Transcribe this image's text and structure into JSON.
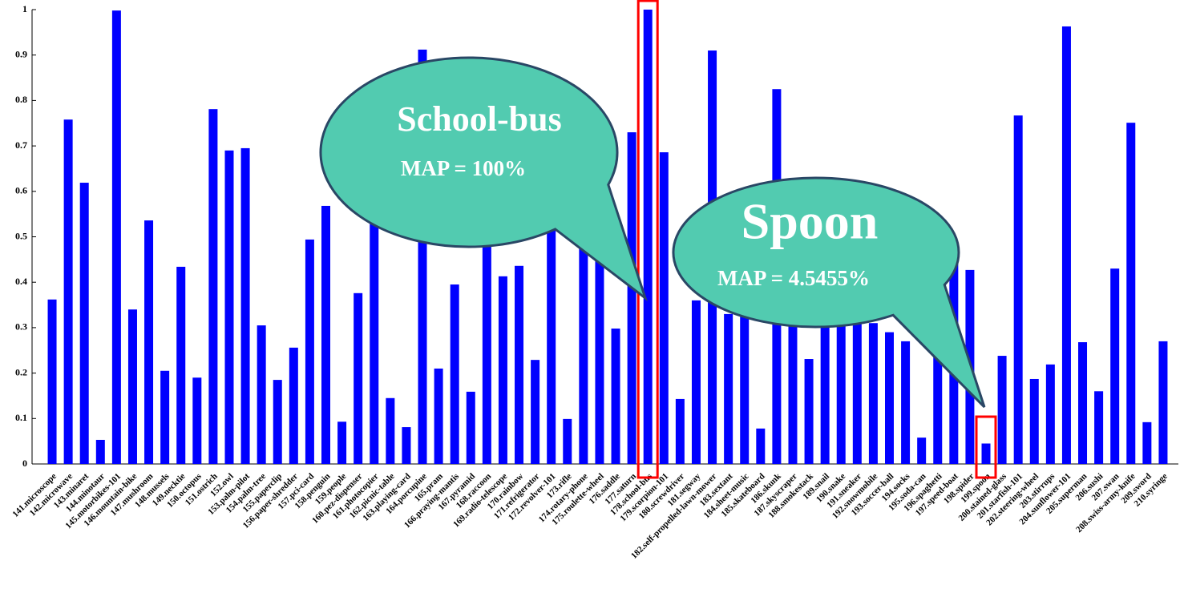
{
  "chart_data": {
    "type": "bar",
    "color": "#0000ff",
    "categories": [
      "141.microscope",
      "142.microwave",
      "143.minaret",
      "144.minotaur",
      "145.motorbikes-101",
      "146.mountain-bike",
      "147.mushroom",
      "148.mussels",
      "149.necktie",
      "150.octopus",
      "151.ostrich",
      "152.owl",
      "153.palm-pilot",
      "154.palm-tree",
      "155.paperclip",
      "156.paper-shredder",
      "157.pci-card",
      "158.penguin",
      "159.people",
      "160.pez-dispenser",
      "161.photocopier",
      "162.picnic-table",
      "163.playing-card",
      "164.porcupine",
      "165.pram",
      "166.praying-mantis",
      "167.pyramid",
      "168.raccoon",
      "169.radio-telescope",
      "170.rainbow",
      "171.refrigerator",
      "172.revolver-101",
      "173.rifle",
      "174.rotary-phone",
      "175.roulette-wheel",
      "176.saddle",
      "177.saturn",
      "178.school-bus",
      "179.scorpion-101",
      "180.screwdriver",
      "181.segway",
      "182.self-propelled-lawn-mower",
      "183.sextant",
      "184.sheet-music",
      "185.skateboard",
      "186.skunk",
      "187.skyscraper",
      "188.smokestack",
      "189.snail",
      "190.snake",
      "191.sneaker",
      "192.snowmobile",
      "193.soccer-ball",
      "194.socks",
      "195.soda-can",
      "196.spaghetti",
      "197.speed-boat",
      "198.spider",
      "199.spoon",
      "200.stained-glass",
      "201.starfish-101",
      "202.steering-wheel",
      "203.stirrups",
      "204.sunflower-101",
      "205.superman",
      "206.sushi",
      "207.swan",
      "208.swiss-army-knife",
      "209.sword",
      "210.syringe"
    ],
    "values": [
      0.362,
      0.758,
      0.619,
      0.053,
      0.998,
      0.34,
      0.536,
      0.205,
      0.434,
      0.19,
      0.781,
      0.69,
      0.695,
      0.305,
      0.185,
      0.256,
      0.494,
      0.568,
      0.093,
      0.376,
      0.58,
      0.145,
      0.081,
      0.912,
      0.21,
      0.395,
      0.159,
      0.58,
      0.413,
      0.436,
      0.229,
      0.52,
      0.099,
      0.614,
      0.589,
      0.298,
      0.73,
      1.0,
      0.686,
      0.143,
      0.36,
      0.91,
      0.33,
      0.33,
      0.078,
      0.825,
      0.33,
      0.231,
      0.33,
      0.33,
      0.312,
      0.31,
      0.29,
      0.27,
      0.058,
      0.316,
      0.467,
      0.427,
      0.045,
      0.238,
      0.767,
      0.187,
      0.219,
      0.963,
      0.268,
      0.16,
      0.43,
      0.751,
      0.092,
      0.27
    ],
    "ylim": [
      0,
      1
    ],
    "yticks": [
      0,
      0.1,
      0.2,
      0.3,
      0.4,
      0.5,
      0.6,
      0.7,
      0.8,
      0.9,
      1
    ],
    "annotations": [
      {
        "title": "School-bus",
        "text": "MAP = 100%"
      },
      {
        "title": "Spoon",
        "text": "MAP = 4.5455%"
      }
    ]
  }
}
